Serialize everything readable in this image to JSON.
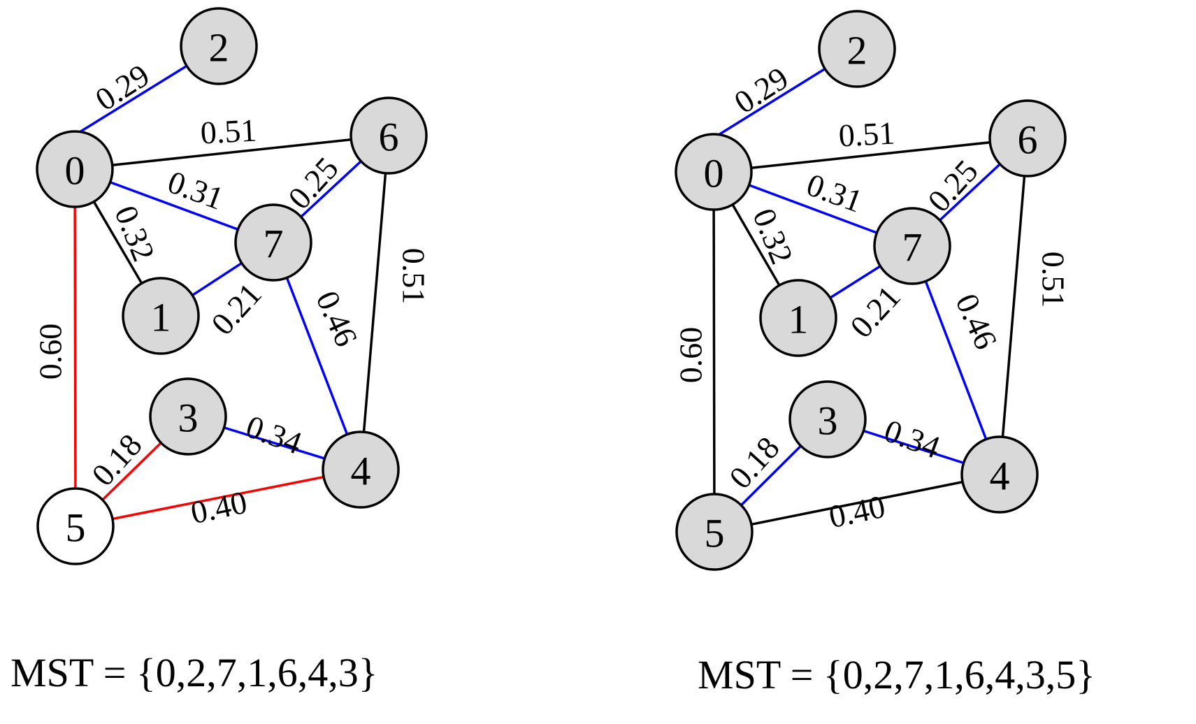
{
  "colors": {
    "node_fill_default": "#d9d9d9",
    "node_fill_white": "#ffffff",
    "stroke": "#000000",
    "blue": "#0000ff",
    "red": "#ff0000",
    "black": "#000000"
  },
  "diagrams": [
    {
      "id": "left",
      "caption": "MST = {0,2,7,1,6,4,3}",
      "nodes": [
        {
          "id": "0",
          "label": "0",
          "fill": "gray"
        },
        {
          "id": "1",
          "label": "1",
          "fill": "gray"
        },
        {
          "id": "2",
          "label": "2",
          "fill": "gray"
        },
        {
          "id": "3",
          "label": "3",
          "fill": "gray"
        },
        {
          "id": "4",
          "label": "4",
          "fill": "gray"
        },
        {
          "id": "5",
          "label": "5",
          "fill": "white"
        },
        {
          "id": "6",
          "label": "6",
          "fill": "gray"
        },
        {
          "id": "7",
          "label": "7",
          "fill": "gray"
        }
      ],
      "edges": [
        {
          "from": "0",
          "to": "2",
          "weight": "0.29",
          "color": "blue"
        },
        {
          "from": "0",
          "to": "6",
          "weight": "0.51",
          "color": "black"
        },
        {
          "from": "0",
          "to": "7",
          "weight": "0.31",
          "color": "blue"
        },
        {
          "from": "0",
          "to": "1",
          "weight": "0.32",
          "color": "black"
        },
        {
          "from": "7",
          "to": "6",
          "weight": "0.25",
          "color": "blue"
        },
        {
          "from": "1",
          "to": "7",
          "weight": "0.21",
          "color": "blue"
        },
        {
          "from": "7",
          "to": "4",
          "weight": "0.46",
          "color": "blue"
        },
        {
          "from": "6",
          "to": "4",
          "weight": "0.51",
          "color": "black"
        },
        {
          "from": "0",
          "to": "5",
          "weight": "0.60",
          "color": "red"
        },
        {
          "from": "5",
          "to": "3",
          "weight": "0.18",
          "color": "red"
        },
        {
          "from": "3",
          "to": "4",
          "weight": "0.34",
          "color": "blue"
        },
        {
          "from": "5",
          "to": "4",
          "weight": "0.40",
          "color": "red"
        }
      ]
    },
    {
      "id": "right",
      "caption": "MST = {0,2,7,1,6,4,3,5}",
      "nodes": [
        {
          "id": "0",
          "label": "0",
          "fill": "gray"
        },
        {
          "id": "1",
          "label": "1",
          "fill": "gray"
        },
        {
          "id": "2",
          "label": "2",
          "fill": "gray"
        },
        {
          "id": "3",
          "label": "3",
          "fill": "gray"
        },
        {
          "id": "4",
          "label": "4",
          "fill": "gray"
        },
        {
          "id": "5",
          "label": "5",
          "fill": "gray"
        },
        {
          "id": "6",
          "label": "6",
          "fill": "gray"
        },
        {
          "id": "7",
          "label": "7",
          "fill": "gray"
        }
      ],
      "edges": [
        {
          "from": "0",
          "to": "2",
          "weight": "0.29",
          "color": "blue"
        },
        {
          "from": "0",
          "to": "6",
          "weight": "0.51",
          "color": "black"
        },
        {
          "from": "0",
          "to": "7",
          "weight": "0.31",
          "color": "blue"
        },
        {
          "from": "0",
          "to": "1",
          "weight": "0.32",
          "color": "black"
        },
        {
          "from": "7",
          "to": "6",
          "weight": "0.25",
          "color": "blue"
        },
        {
          "from": "1",
          "to": "7",
          "weight": "0.21",
          "color": "blue"
        },
        {
          "from": "7",
          "to": "4",
          "weight": "0.46",
          "color": "blue"
        },
        {
          "from": "6",
          "to": "4",
          "weight": "0.51",
          "color": "black"
        },
        {
          "from": "0",
          "to": "5",
          "weight": "0.60",
          "color": "black"
        },
        {
          "from": "5",
          "to": "3",
          "weight": "0.18",
          "color": "blue"
        },
        {
          "from": "3",
          "to": "4",
          "weight": "0.34",
          "color": "blue"
        },
        {
          "from": "5",
          "to": "4",
          "weight": "0.40",
          "color": "black"
        }
      ]
    }
  ]
}
